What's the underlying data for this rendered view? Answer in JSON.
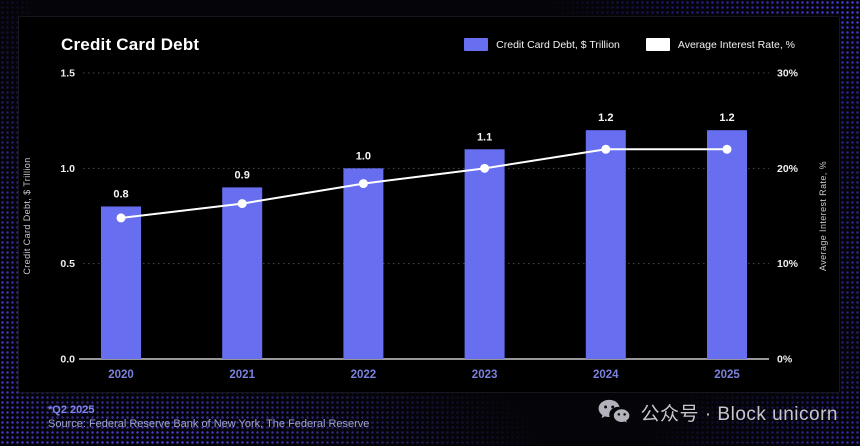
{
  "title": "Credit Card Debt",
  "legend": [
    {
      "label": "Credit Card Debt, $ Trillion",
      "color": "#676ff0"
    },
    {
      "label": "Average Interest Rate, %",
      "color": "#ffffff"
    }
  ],
  "chart_data": {
    "type": "bar+line",
    "categories": [
      "2020",
      "2021",
      "2022",
      "2023",
      "2024",
      "2025"
    ],
    "series": [
      {
        "name": "Credit Card Debt, $ Trillion",
        "type": "bar",
        "axis": "left",
        "values": [
          0.8,
          0.9,
          1.0,
          1.1,
          1.2,
          1.2
        ],
        "color": "#676ff0",
        "data_labels": [
          "0.8",
          "0.9",
          "1.0",
          "1.1",
          "1.2",
          "1.2"
        ]
      },
      {
        "name": "Average Interest Rate, %",
        "type": "line",
        "axis": "right",
        "values": [
          14.8,
          16.3,
          18.4,
          20.0,
          22.0,
          22.0
        ],
        "color": "#ffffff"
      }
    ],
    "left_axis": {
      "label": "Credit Card Debt, $ Trillion",
      "min": 0,
      "max": 1.5,
      "tick_values": [
        0,
        0.5,
        1.0,
        1.5
      ],
      "tick_labels": [
        "0.0",
        "0.5",
        "1.0",
        "1.5"
      ]
    },
    "right_axis": {
      "label": "Average Interest Rate, %",
      "min": 0,
      "max": 30,
      "tick_values": [
        0,
        10,
        20,
        30
      ],
      "tick_labels": [
        "0%",
        "10%",
        "20%",
        "30%"
      ]
    },
    "grid": "dashed horizontal, solid zero baseline",
    "colors": {
      "grid": "#4a4a55",
      "baseline": "#c9c9cd",
      "x_tick": "#7a80dc",
      "value_label": "#f5f5f5"
    }
  },
  "footer": {
    "note": "*Q2 2025",
    "source": "Source: Federal Reserve Bank of New York, The Federal Reserve",
    "watermark": "公众号 · Block unicorn",
    "watermark_icon": "wechat-icon"
  }
}
